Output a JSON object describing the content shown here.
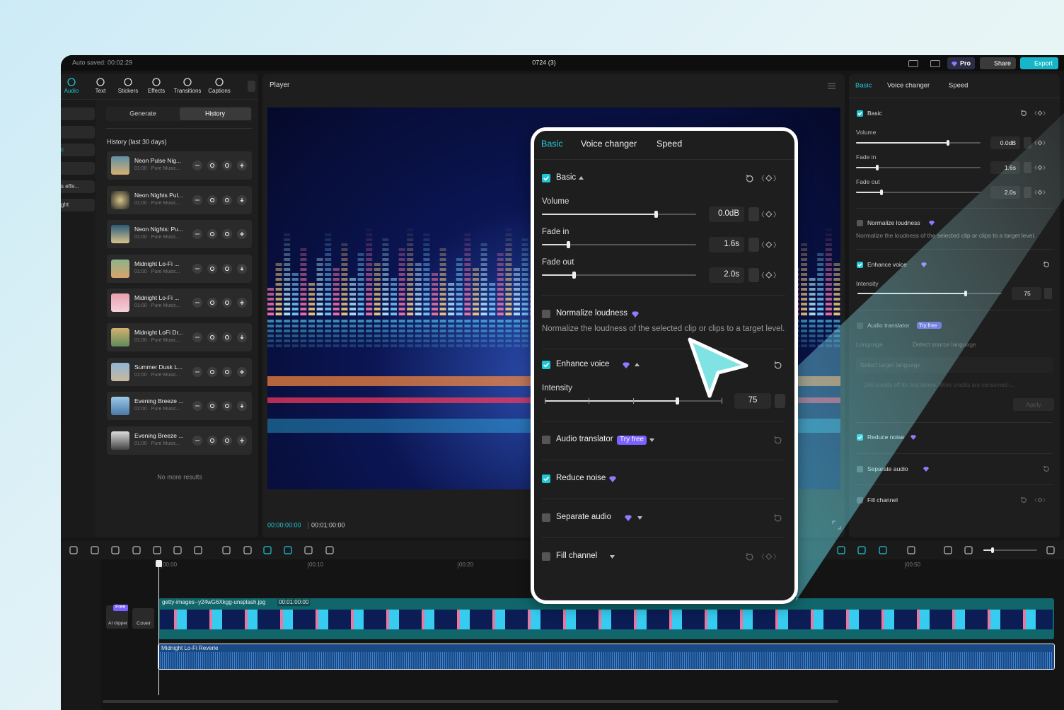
{
  "top_bar": {
    "auto_saved": "Auto saved: 00:02:29",
    "project": "0724 (3)",
    "pro": "Pro",
    "share": "Share",
    "export": "Export"
  },
  "tools": [
    "Audio",
    "Text",
    "Stickers",
    "Effects",
    "Transitions",
    "Captions"
  ],
  "side_list": [
    "c",
    "s effe...",
    "ght"
  ],
  "library": {
    "tabs": [
      "Generate",
      "History"
    ],
    "heading": "History (last 30 days)",
    "items": [
      {
        "title": "Neon Pulse Nig...",
        "meta": "01:00 · Pure Music..."
      },
      {
        "title": "Neon Nights Pul...",
        "meta": "01:00 · Pure Music..."
      },
      {
        "title": "Neon Nights: Pu...",
        "meta": "01:00 · Pure Music..."
      },
      {
        "title": "Midnight Lo-Fi ...",
        "meta": "01:00 · Pure Music..."
      },
      {
        "title": "Midnight Lo-Fi ...",
        "meta": "01:00 · Pure Music..."
      },
      {
        "title": "Midnight LoFi Dr...",
        "meta": "01:00 · Pure Music..."
      },
      {
        "title": "Summer Dusk L...",
        "meta": "01:00 · Pure Music..."
      },
      {
        "title": "Evening Breeze ...",
        "meta": "01:00 · Pure Music..."
      },
      {
        "title": "Evening Breeze ...",
        "meta": "01:00 · Pure Music..."
      }
    ],
    "footer": "No more results"
  },
  "player": {
    "title": "Player",
    "current_time": "00:00:00:00",
    "duration": "00:01:00:00"
  },
  "properties": {
    "tabs": [
      "Basic",
      "Voice changer",
      "Speed"
    ],
    "basic": "Basic",
    "volume": {
      "label": "Volume",
      "value": "0.0dB"
    },
    "fade_in": {
      "label": "Fade in",
      "value": "1.6s"
    },
    "fade_out": {
      "label": "Fade out",
      "value": "2.0s"
    },
    "normalize": {
      "label": "Normalize loudness",
      "description": "Normalize the loudness of the selected clip or clips to a target level."
    },
    "enhance_voice": "Enhance voice",
    "intensity": {
      "label": "Intensity",
      "value": "75"
    },
    "audio_translator": {
      "label": "Audio translator",
      "badge": "Try free",
      "language_label": "Language",
      "source": "Detect source language",
      "target": "Select target language",
      "credits": "240 credits off for first timers. More credits are consumed i...",
      "apply": "Apply"
    },
    "reduce_noise": "Reduce noise",
    "separate_audio": "Separate audio",
    "fill_channel": "Fill channel"
  },
  "timeline": {
    "ruler": [
      "00:00",
      "00:10",
      "00:20",
      "00:50"
    ],
    "video_clip": {
      "name": "getty-images--y24wG6Xkgg-unsplash.jpg",
      "duration": "00:01:00:00"
    },
    "free_badge": "Free",
    "ai_clipper": "AI clipper",
    "cover": "Cover",
    "audio_clip": "Midnight Lo-Fi Reverie"
  }
}
